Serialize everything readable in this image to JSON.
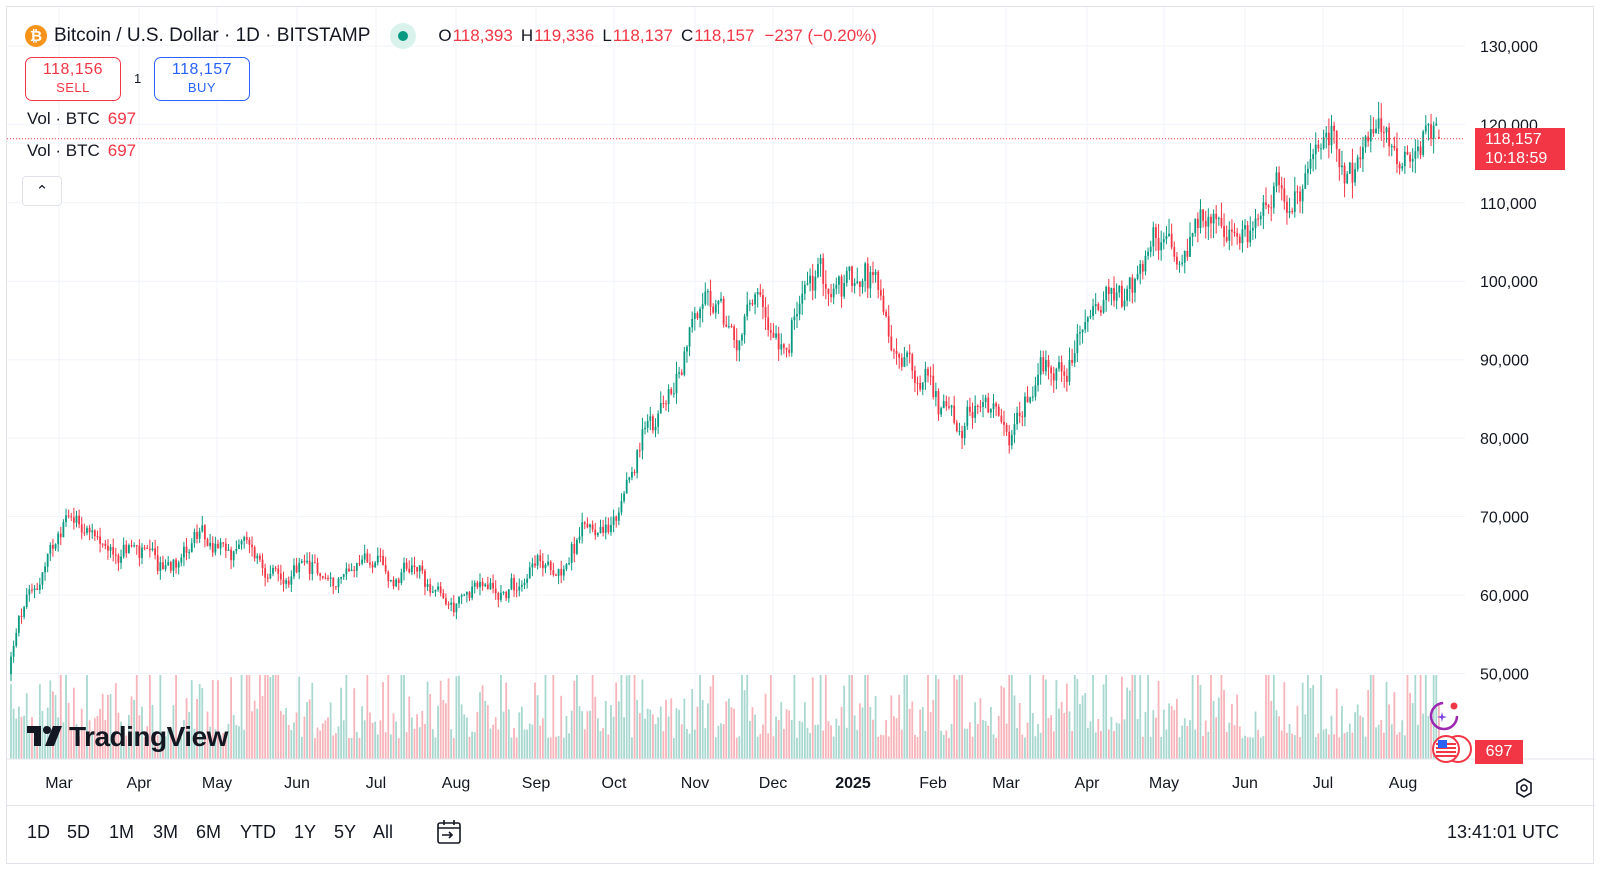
{
  "header": {
    "symbol_title": "Bitcoin / U.S. Dollar · 1D · BITSTAMP",
    "coin_glyph": "₿",
    "market_status_color": "#089981",
    "ohlc": {
      "o_label": "O",
      "o_value": "118,393",
      "h_label": "H",
      "h_value": "119,336",
      "l_label": "L",
      "l_value": "118,137",
      "c_label": "C",
      "c_value": "118,157",
      "change": "−237 (−0.20%)"
    }
  },
  "trade": {
    "sell_price": "118,156",
    "sell_label": "SELL",
    "quantity": "1",
    "buy_price": "118,157",
    "buy_label": "BUY"
  },
  "volume_legend": [
    {
      "label": "Vol · BTC",
      "value": "697"
    },
    {
      "label": "Vol · BTC",
      "value": "697"
    }
  ],
  "collapse_glyph": "⌃",
  "logo_text": "TradingView",
  "last_price": {
    "value": "118,157",
    "countdown": "10:18:59"
  },
  "last_volume": "697",
  "colors": {
    "up": "#089981",
    "down": "#f23645",
    "up_vol": "#a8d8d0",
    "down_vol": "#f7b4ba",
    "grid": "#f0f3fa"
  },
  "bottom_bar": {
    "ranges": [
      "1D",
      "5D",
      "1M",
      "3M",
      "6M",
      "YTD",
      "1Y",
      "5Y",
      "All"
    ],
    "time": "13:41:01 UTC"
  },
  "chart_data": {
    "type": "candlestick",
    "title": "Bitcoin / U.S. Dollar · 1D · BITSTAMP",
    "price_axis": {
      "ticks": [
        50000,
        60000,
        70000,
        80000,
        90000,
        100000,
        110000,
        120000,
        130000
      ],
      "ylim": [
        40000,
        131000
      ]
    },
    "time_axis": {
      "labels": [
        "Mar",
        "Apr",
        "May",
        "Jun",
        "Jul",
        "Aug",
        "Sep",
        "Oct",
        "Nov",
        "Dec",
        "2025",
        "Feb",
        "Mar",
        "Apr",
        "May",
        "Jun",
        "Jul",
        "Aug"
      ]
    },
    "close_anchors": [
      {
        "month": "Feb 2024 end",
        "close": 52000
      },
      {
        "month": "Mar 2024",
        "close": 70000
      },
      {
        "month": "Apr 2024",
        "close": 64000
      },
      {
        "month": "May 2024",
        "close": 67000
      },
      {
        "month": "Jun 2024",
        "close": 62000
      },
      {
        "month": "Jul 2024",
        "close": 64000
      },
      {
        "month": "Aug 2024",
        "close": 59000
      },
      {
        "month": "Sep 2024",
        "close": 63000
      },
      {
        "month": "Oct 2024",
        "close": 70000
      },
      {
        "month": "Nov 2024",
        "close": 96000
      },
      {
        "month": "Dec 2024",
        "close": 94000
      },
      {
        "month": "Jan 2025",
        "close": 102000
      },
      {
        "month": "Feb 2025",
        "close": 84000
      },
      {
        "month": "Mar 2025",
        "close": 82000
      },
      {
        "month": "Apr 2025",
        "close": 94000
      },
      {
        "month": "May 2025",
        "close": 104000
      },
      {
        "month": "Jun 2025",
        "close": 107000
      },
      {
        "month": "Jul 2025",
        "close": 116000
      },
      {
        "month": "Aug 2025",
        "close": 118157
      }
    ],
    "last_close": 118157,
    "last_volume": 697
  }
}
